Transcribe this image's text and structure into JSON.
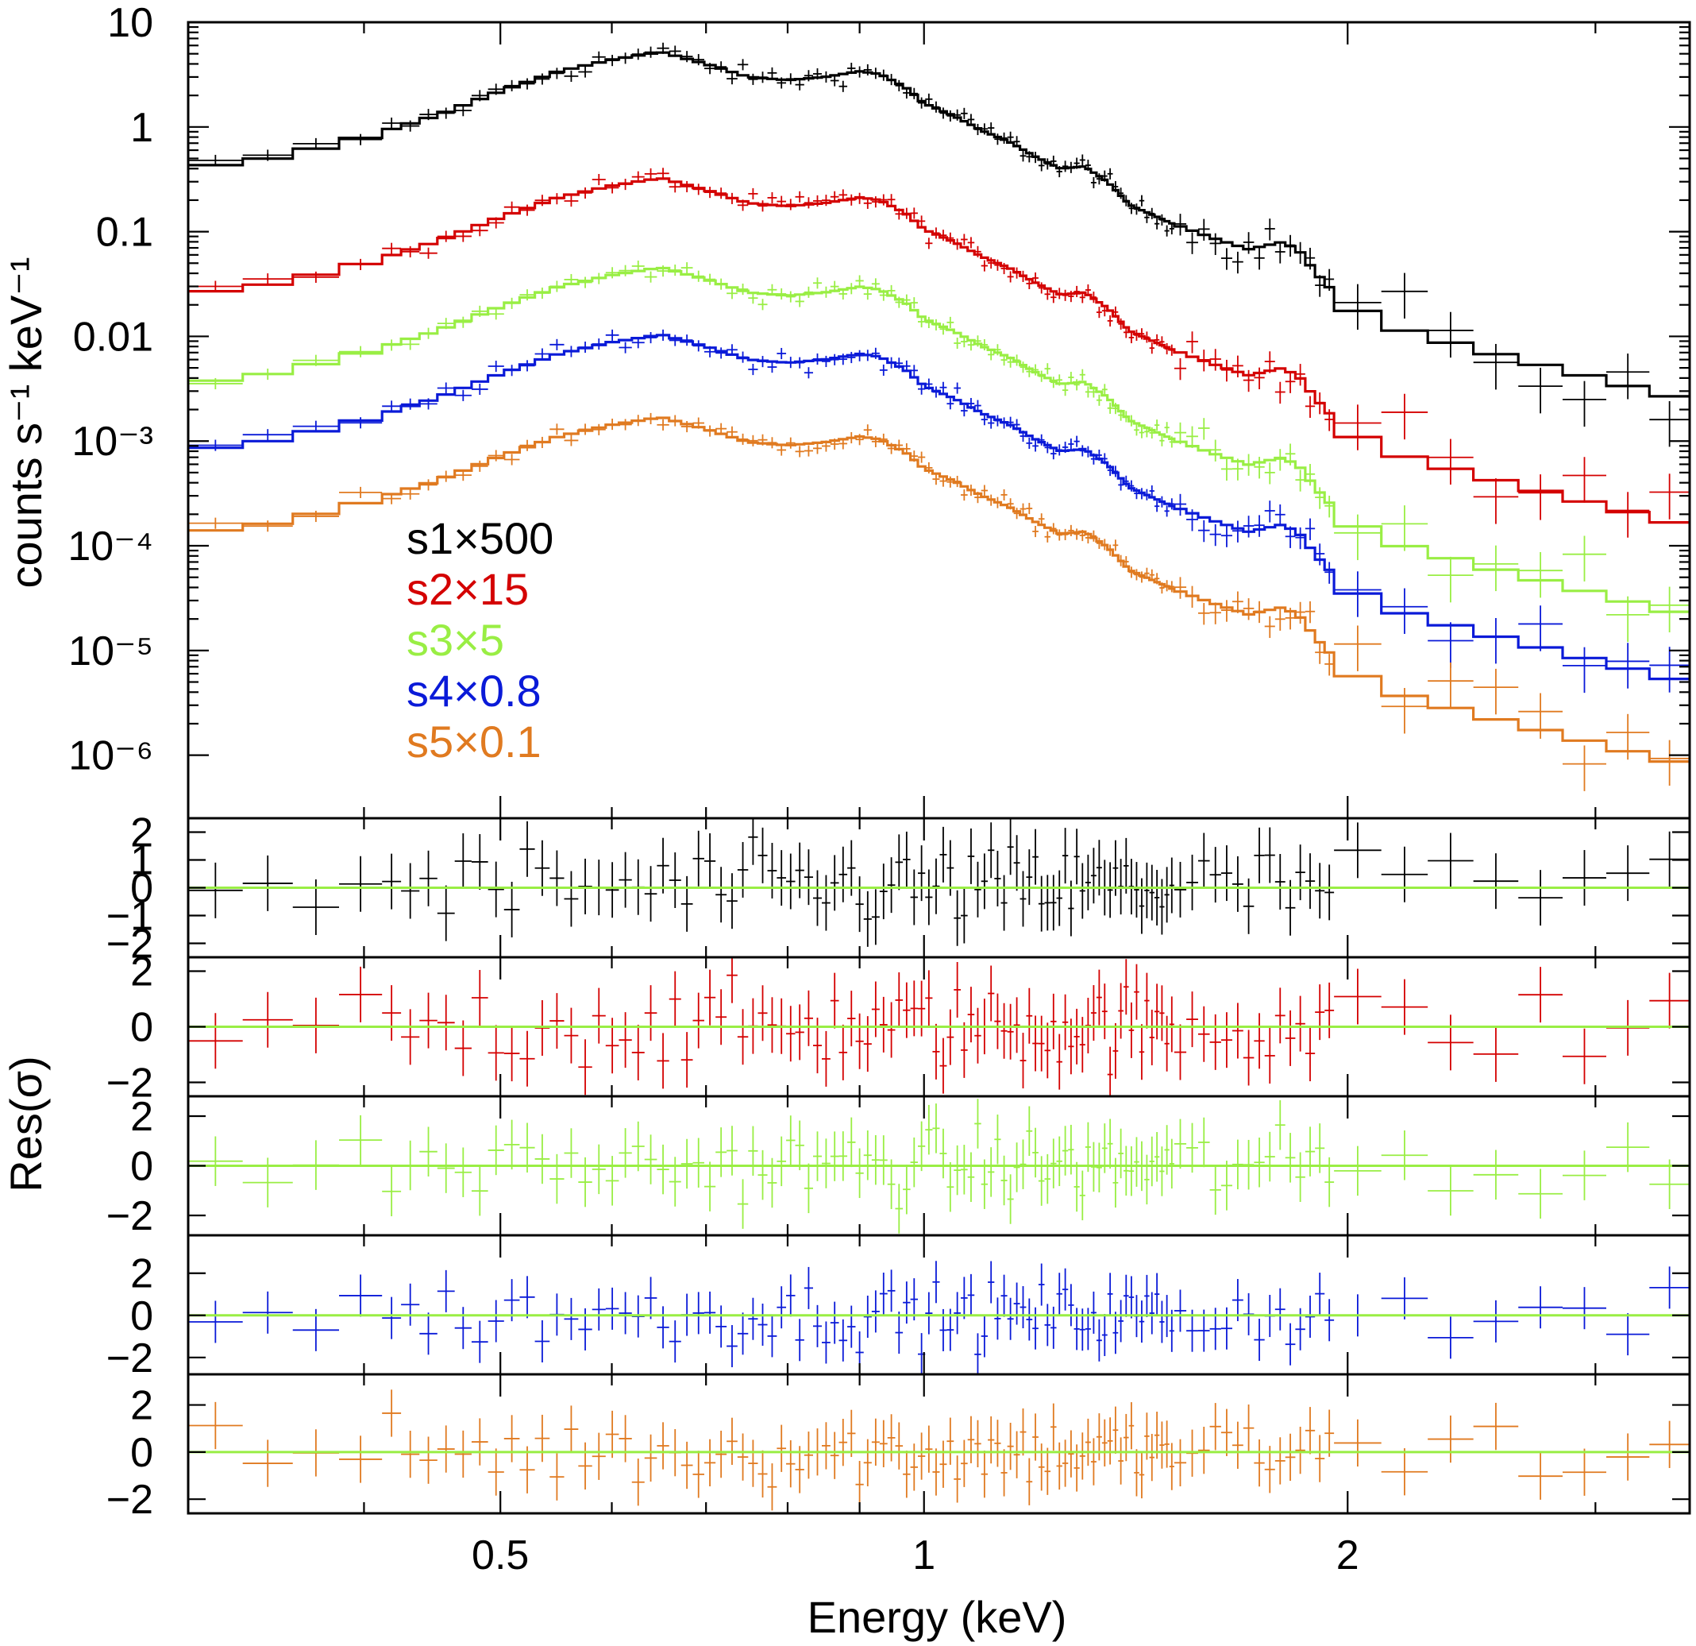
{
  "chart_data": {
    "type": "line",
    "subtype": "x-ray spectrum with folded model and residual panels",
    "xlabel": "Energy (keV)",
    "x_scale": "log",
    "xlim": [
      0.3,
      3.5
    ],
    "x_ticks": [
      {
        "value": 0.5,
        "label": "0.5"
      },
      {
        "value": 1,
        "label": "1"
      },
      {
        "value": 2,
        "label": "2"
      }
    ],
    "spectrum_panel": {
      "ylabel": "counts s⁻¹ keV⁻¹",
      "y_scale": "log",
      "ylim": [
        2.5e-07,
        10
      ],
      "y_ticks": [
        {
          "value": 10,
          "label": "10"
        },
        {
          "value": 1,
          "label": "1"
        },
        {
          "value": 0.1,
          "label": "0.1"
        },
        {
          "value": 0.01,
          "label": "0.01"
        },
        {
          "value": 0.001,
          "label": "10⁻³"
        },
        {
          "value": 0.0001,
          "label": "10⁻⁴"
        },
        {
          "value": 1e-05,
          "label": "10⁻⁵"
        },
        {
          "value": 1e-06,
          "label": "10⁻⁶"
        }
      ],
      "legend_position": "center-left",
      "legend": [
        {
          "label": "s1×500",
          "color": "#000000"
        },
        {
          "label": "s2×15",
          "color": "#d40000"
        },
        {
          "label": "s3×5",
          "color": "#99ee44"
        },
        {
          "label": "s4×0.8",
          "color": "#0a1ad8"
        },
        {
          "label": "s5×0.1",
          "color": "#e07a20"
        }
      ],
      "model_shape_relative": {
        "energy": [
          0.3,
          0.35,
          0.4,
          0.45,
          0.5,
          0.55,
          0.6,
          0.65,
          0.7,
          0.75,
          0.8,
          0.85,
          0.9,
          0.93,
          0.97,
          1.0,
          1.05,
          1.1,
          1.15,
          1.2,
          1.25,
          1.3,
          1.35,
          1.4,
          1.5,
          1.6,
          1.7,
          1.8,
          1.85,
          1.9,
          2.0,
          2.2,
          2.5,
          3.0,
          3.5
        ],
        "relative_flux": [
          1.0,
          1.3,
          2.0,
          3.2,
          5.5,
          8.5,
          11.0,
          13.0,
          10.0,
          7.5,
          7.0,
          7.5,
          8.5,
          8.0,
          6.0,
          4.2,
          3.2,
          2.3,
          1.8,
          1.3,
          1.0,
          1.05,
          0.75,
          0.45,
          0.3,
          0.22,
          0.17,
          0.2,
          0.16,
          0.1,
          0.048,
          0.028,
          0.018,
          0.01,
          0.006
        ]
      },
      "series": [
        {
          "name": "s1×500",
          "color": "#000000",
          "model_norm_at_0.3keV": 0.4,
          "plotted_to_keV": 3.5
        },
        {
          "name": "s2×15",
          "color": "#d40000",
          "model_norm_at_0.3keV": 0.025,
          "plotted_to_keV": 3.5
        },
        {
          "name": "s3×5",
          "color": "#99ee44",
          "model_norm_at_0.3keV": 0.0035,
          "plotted_to_keV": 3.5
        },
        {
          "name": "s4×0.8",
          "color": "#0a1ad8",
          "model_norm_at_0.3keV": 0.0008,
          "plotted_to_keV": 3.5
        },
        {
          "name": "s5×0.1",
          "color": "#e07a20",
          "model_norm_at_0.3keV": 0.00013,
          "plotted_to_keV": 3.5
        }
      ]
    },
    "residual_panels": {
      "ylabel": "Res(σ)",
      "zero_line_color": "#99ee44",
      "panels": [
        {
          "series": "s1×500",
          "color": "#000000",
          "ylim": [
            -2.5,
            2.5
          ],
          "tick_values": [
            -2,
            -1,
            0,
            1,
            2
          ],
          "tick_labels": [
            "−2",
            "−1",
            "0",
            "1",
            "2"
          ]
        },
        {
          "series": "s2×15",
          "color": "#d40000",
          "ylim": [
            -2.5,
            2.5
          ],
          "tick_values": [
            -2,
            0,
            2
          ],
          "tick_labels": [
            "−2",
            "0",
            "2"
          ]
        },
        {
          "series": "s3×5",
          "color": "#99ee44",
          "ylim": [
            -2.8,
            2.8
          ],
          "tick_values": [
            -2,
            0,
            2
          ],
          "tick_labels": [
            "−2",
            "0",
            "2"
          ]
        },
        {
          "series": "s4×0.8",
          "color": "#0a1ad8",
          "ylim": [
            -2.8,
            3.8
          ],
          "tick_values": [
            -2,
            0,
            2
          ],
          "tick_labels": [
            "−2",
            "0",
            "2"
          ]
        },
        {
          "series": "s5×0.1",
          "color": "#e07a20",
          "ylim": [
            -2.6,
            3.3
          ],
          "tick_values": [
            -2,
            0,
            2
          ],
          "tick_labels": [
            "−2",
            "0",
            "2"
          ]
        }
      ]
    }
  }
}
